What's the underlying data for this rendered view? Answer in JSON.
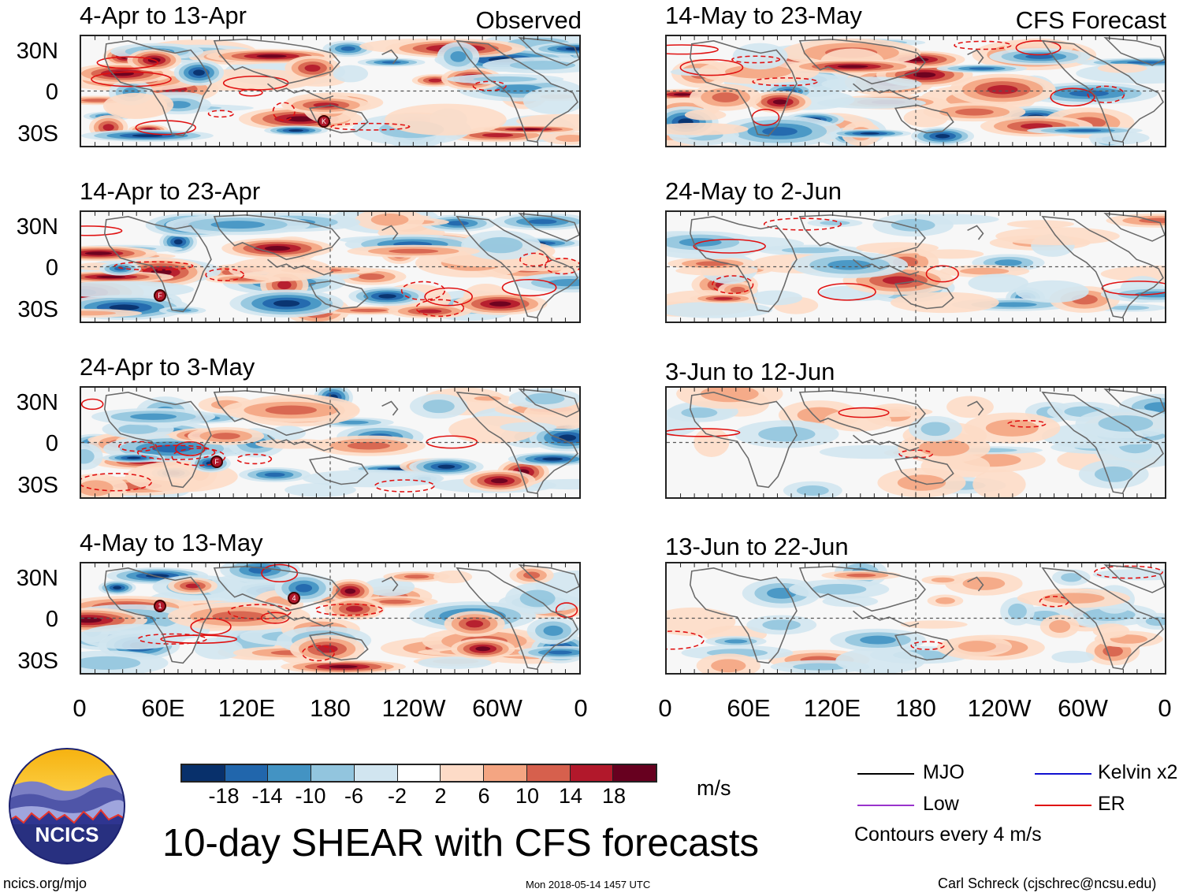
{
  "headers": {
    "observed": "Observed",
    "forecast": "CFS Forecast"
  },
  "panels": [
    {
      "id": "obs-1",
      "title": "4-Apr to 13-Apr",
      "intensity": 1.0,
      "cyclones": [
        "K"
      ]
    },
    {
      "id": "obs-2",
      "title": "14-Apr to 23-Apr",
      "intensity": 1.0,
      "cyclones": [
        "F"
      ]
    },
    {
      "id": "obs-3",
      "title": "24-Apr to 3-May",
      "intensity": 1.0,
      "cyclones": [
        "F"
      ]
    },
    {
      "id": "obs-4",
      "title": "4-May to 13-May",
      "intensity": 1.0,
      "cyclones": [
        "4",
        "1"
      ]
    },
    {
      "id": "fc-1",
      "title": "14-May to 23-May",
      "intensity": 0.95,
      "cyclones": []
    },
    {
      "id": "fc-2",
      "title": "24-May to 2-Jun",
      "intensity": 0.6,
      "cyclones": []
    },
    {
      "id": "fc-3",
      "title": "3-Jun to 12-Jun",
      "intensity": 0.35,
      "cyclones": []
    },
    {
      "id": "fc-4",
      "title": "13-Jun to 22-Jun",
      "intensity": 0.35,
      "cyclones": []
    }
  ],
  "lat_labels": [
    "30N",
    "0",
    "30S"
  ],
  "lon_labels": [
    "0",
    "60E",
    "120E",
    "180",
    "120W",
    "60W",
    "0"
  ],
  "colorbar": {
    "colors": [
      "#08306b",
      "#2166ac",
      "#4393c3",
      "#92c5de",
      "#d1e5f0",
      "#ffffff",
      "#fddbc7",
      "#f4a582",
      "#d6604d",
      "#b2182b",
      "#67001f"
    ],
    "labels": [
      "-18",
      "-14",
      "-10",
      "-6",
      "-2",
      "2",
      "6",
      "10",
      "14",
      "18"
    ],
    "units": "m/s"
  },
  "legend": {
    "items": [
      {
        "label": "MJO",
        "color": "#000000"
      },
      {
        "label": "Kelvin x2",
        "color": "#1010d0"
      },
      {
        "label": "Low",
        "color": "#9933cc"
      },
      {
        "label": "ER",
        "color": "#e01010"
      }
    ],
    "note": "Contours every 4 m/s"
  },
  "logo": {
    "text": "NCICS"
  },
  "main_title": "10-day SHEAR with CFS forecasts",
  "footer": {
    "left": "ncics.org/mjo",
    "center": "Mon 2018-05-14 1457 UTC",
    "right": "Carl Schreck (cjschrec@ncsu.edu)"
  }
}
